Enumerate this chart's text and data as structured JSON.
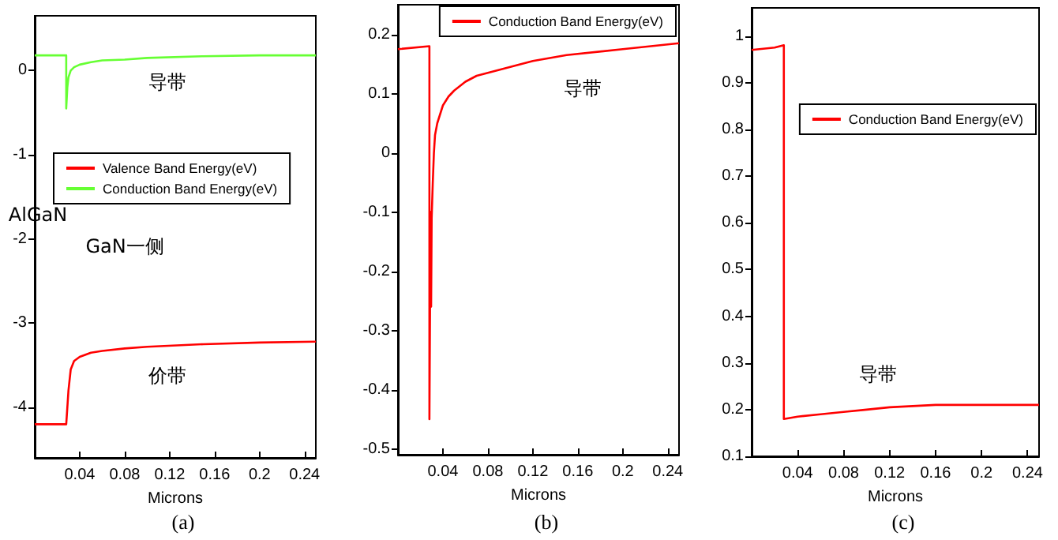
{
  "chart_data": [
    {
      "type": "line",
      "title": "(a)",
      "xlabel": "Microns",
      "xlim": [
        0,
        0.25
      ],
      "ylim": [
        -4.6,
        0.65
      ],
      "xticks": [
        0.04,
        0.08,
        0.12,
        0.16,
        0.2,
        0.24
      ],
      "yticks": [
        0,
        -1,
        -2,
        -3,
        -4
      ],
      "legend": "right",
      "annotations": [
        "导带",
        "AlGaN",
        "GaN一侧",
        "价带"
      ],
      "series": [
        {
          "name": "Valence Band Energy(eV)",
          "color": "#ff0000",
          "x": [
            0,
            0.028,
            0.028,
            0.03,
            0.032,
            0.035,
            0.04,
            0.05,
            0.06,
            0.08,
            0.1,
            0.15,
            0.2,
            0.25
          ],
          "values": [
            -4.2,
            -4.2,
            -4.2,
            -3.8,
            -3.55,
            -3.45,
            -3.4,
            -3.35,
            -3.33,
            -3.3,
            -3.28,
            -3.25,
            -3.23,
            -3.22
          ]
        },
        {
          "name": "Conduction Band Energy(eV)",
          "color": "#66ff33",
          "x": [
            0,
            0.028,
            0.028,
            0.029,
            0.03,
            0.032,
            0.035,
            0.04,
            0.05,
            0.06,
            0.08,
            0.1,
            0.15,
            0.2,
            0.25
          ],
          "values": [
            0.18,
            0.18,
            -0.45,
            -0.2,
            -0.08,
            0.0,
            0.04,
            0.07,
            0.1,
            0.12,
            0.13,
            0.15,
            0.17,
            0.18,
            0.18
          ]
        }
      ]
    },
    {
      "type": "line",
      "title": "(b)",
      "xlabel": "Microns",
      "xlim": [
        0,
        0.25
      ],
      "ylim": [
        -0.51,
        0.25
      ],
      "xticks": [
        0.04,
        0.08,
        0.12,
        0.16,
        0.2,
        0.24
      ],
      "yticks": [
        0.2,
        0.1,
        0,
        -0.1,
        -0.2,
        -0.3,
        -0.4,
        -0.5
      ],
      "legend": "top",
      "annotations": [
        "导带"
      ],
      "series": [
        {
          "name": "Conduction Band Energy(eV)",
          "color": "#ff0000",
          "x": [
            0,
            0.028,
            0.028,
            0.029,
            0.0295,
            0.03,
            0.031,
            0.032,
            0.033,
            0.035,
            0.04,
            0.045,
            0.05,
            0.06,
            0.07,
            0.08,
            0.1,
            0.12,
            0.15,
            0.2,
            0.25
          ],
          "values": [
            0.175,
            0.18,
            -0.45,
            -0.1,
            -0.26,
            -0.11,
            -0.05,
            0.0,
            0.03,
            0.05,
            0.08,
            0.095,
            0.105,
            0.12,
            0.13,
            0.135,
            0.145,
            0.155,
            0.165,
            0.175,
            0.185
          ]
        }
      ]
    },
    {
      "type": "line",
      "title": "(c)",
      "xlabel": "Microns",
      "xlim": [
        0,
        0.25
      ],
      "ylim": [
        0.1,
        1.06
      ],
      "xticks": [
        0.04,
        0.08,
        0.12,
        0.16,
        0.2,
        0.24
      ],
      "yticks": [
        0.1,
        0.2,
        0.3,
        0.4,
        0.5,
        0.6,
        0.7,
        0.8,
        0.9,
        1
      ],
      "legend": "top right",
      "annotations": [
        "导带"
      ],
      "series": [
        {
          "name": "Conduction Band Energy(eV)",
          "color": "#ff0000",
          "x": [
            0,
            0.02,
            0.028,
            0.028,
            0.04,
            0.06,
            0.08,
            0.1,
            0.12,
            0.16,
            0.2,
            0.25
          ],
          "values": [
            0.97,
            0.975,
            0.98,
            0.18,
            0.185,
            0.19,
            0.195,
            0.2,
            0.205,
            0.21,
            0.21,
            0.21
          ]
        }
      ]
    }
  ]
}
